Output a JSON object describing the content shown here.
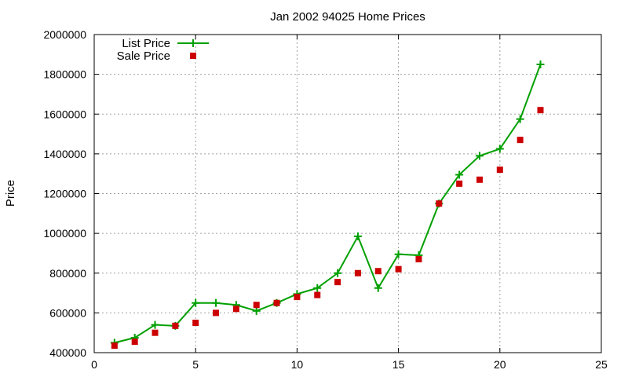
{
  "chart_data": {
    "type": "line",
    "title": "Jan 2002 94025 Home Prices",
    "xlabel": "",
    "ylabel": "Price",
    "xlim": [
      0,
      25
    ],
    "ylim": [
      400000,
      2000000
    ],
    "x_ticks": [
      0,
      5,
      10,
      15,
      20,
      25
    ],
    "y_ticks": [
      400000,
      600000,
      800000,
      1000000,
      1200000,
      1400000,
      1600000,
      1800000,
      2000000
    ],
    "grid": true,
    "legend_position": "top-left",
    "series": [
      {
        "name": "List Price",
        "style": "line-with-plus-markers",
        "color": "#00a000",
        "x": [
          1,
          2,
          3,
          4,
          5,
          6,
          7,
          8,
          9,
          10,
          11,
          12,
          13,
          14,
          15,
          16,
          17,
          18,
          19,
          20,
          21,
          22
        ],
        "values": [
          450000,
          475000,
          540000,
          535000,
          650000,
          650000,
          640000,
          610000,
          650000,
          695000,
          725000,
          800000,
          985000,
          725000,
          895000,
          890000,
          1150000,
          1295000,
          1390000,
          1425000,
          1575000,
          1850000
        ]
      },
      {
        "name": "Sale Price",
        "style": "square-markers",
        "color": "#cc0000",
        "x": [
          1,
          2,
          3,
          4,
          5,
          6,
          7,
          8,
          9,
          10,
          11,
          12,
          13,
          14,
          15,
          16,
          17,
          18,
          19,
          20,
          21,
          22
        ],
        "values": [
          435000,
          455000,
          500000,
          535000,
          550000,
          600000,
          620000,
          640000,
          650000,
          680000,
          690000,
          755000,
          800000,
          810000,
          820000,
          870000,
          1150000,
          1250000,
          1270000,
          1320000,
          1470000,
          1620000
        ]
      }
    ]
  }
}
